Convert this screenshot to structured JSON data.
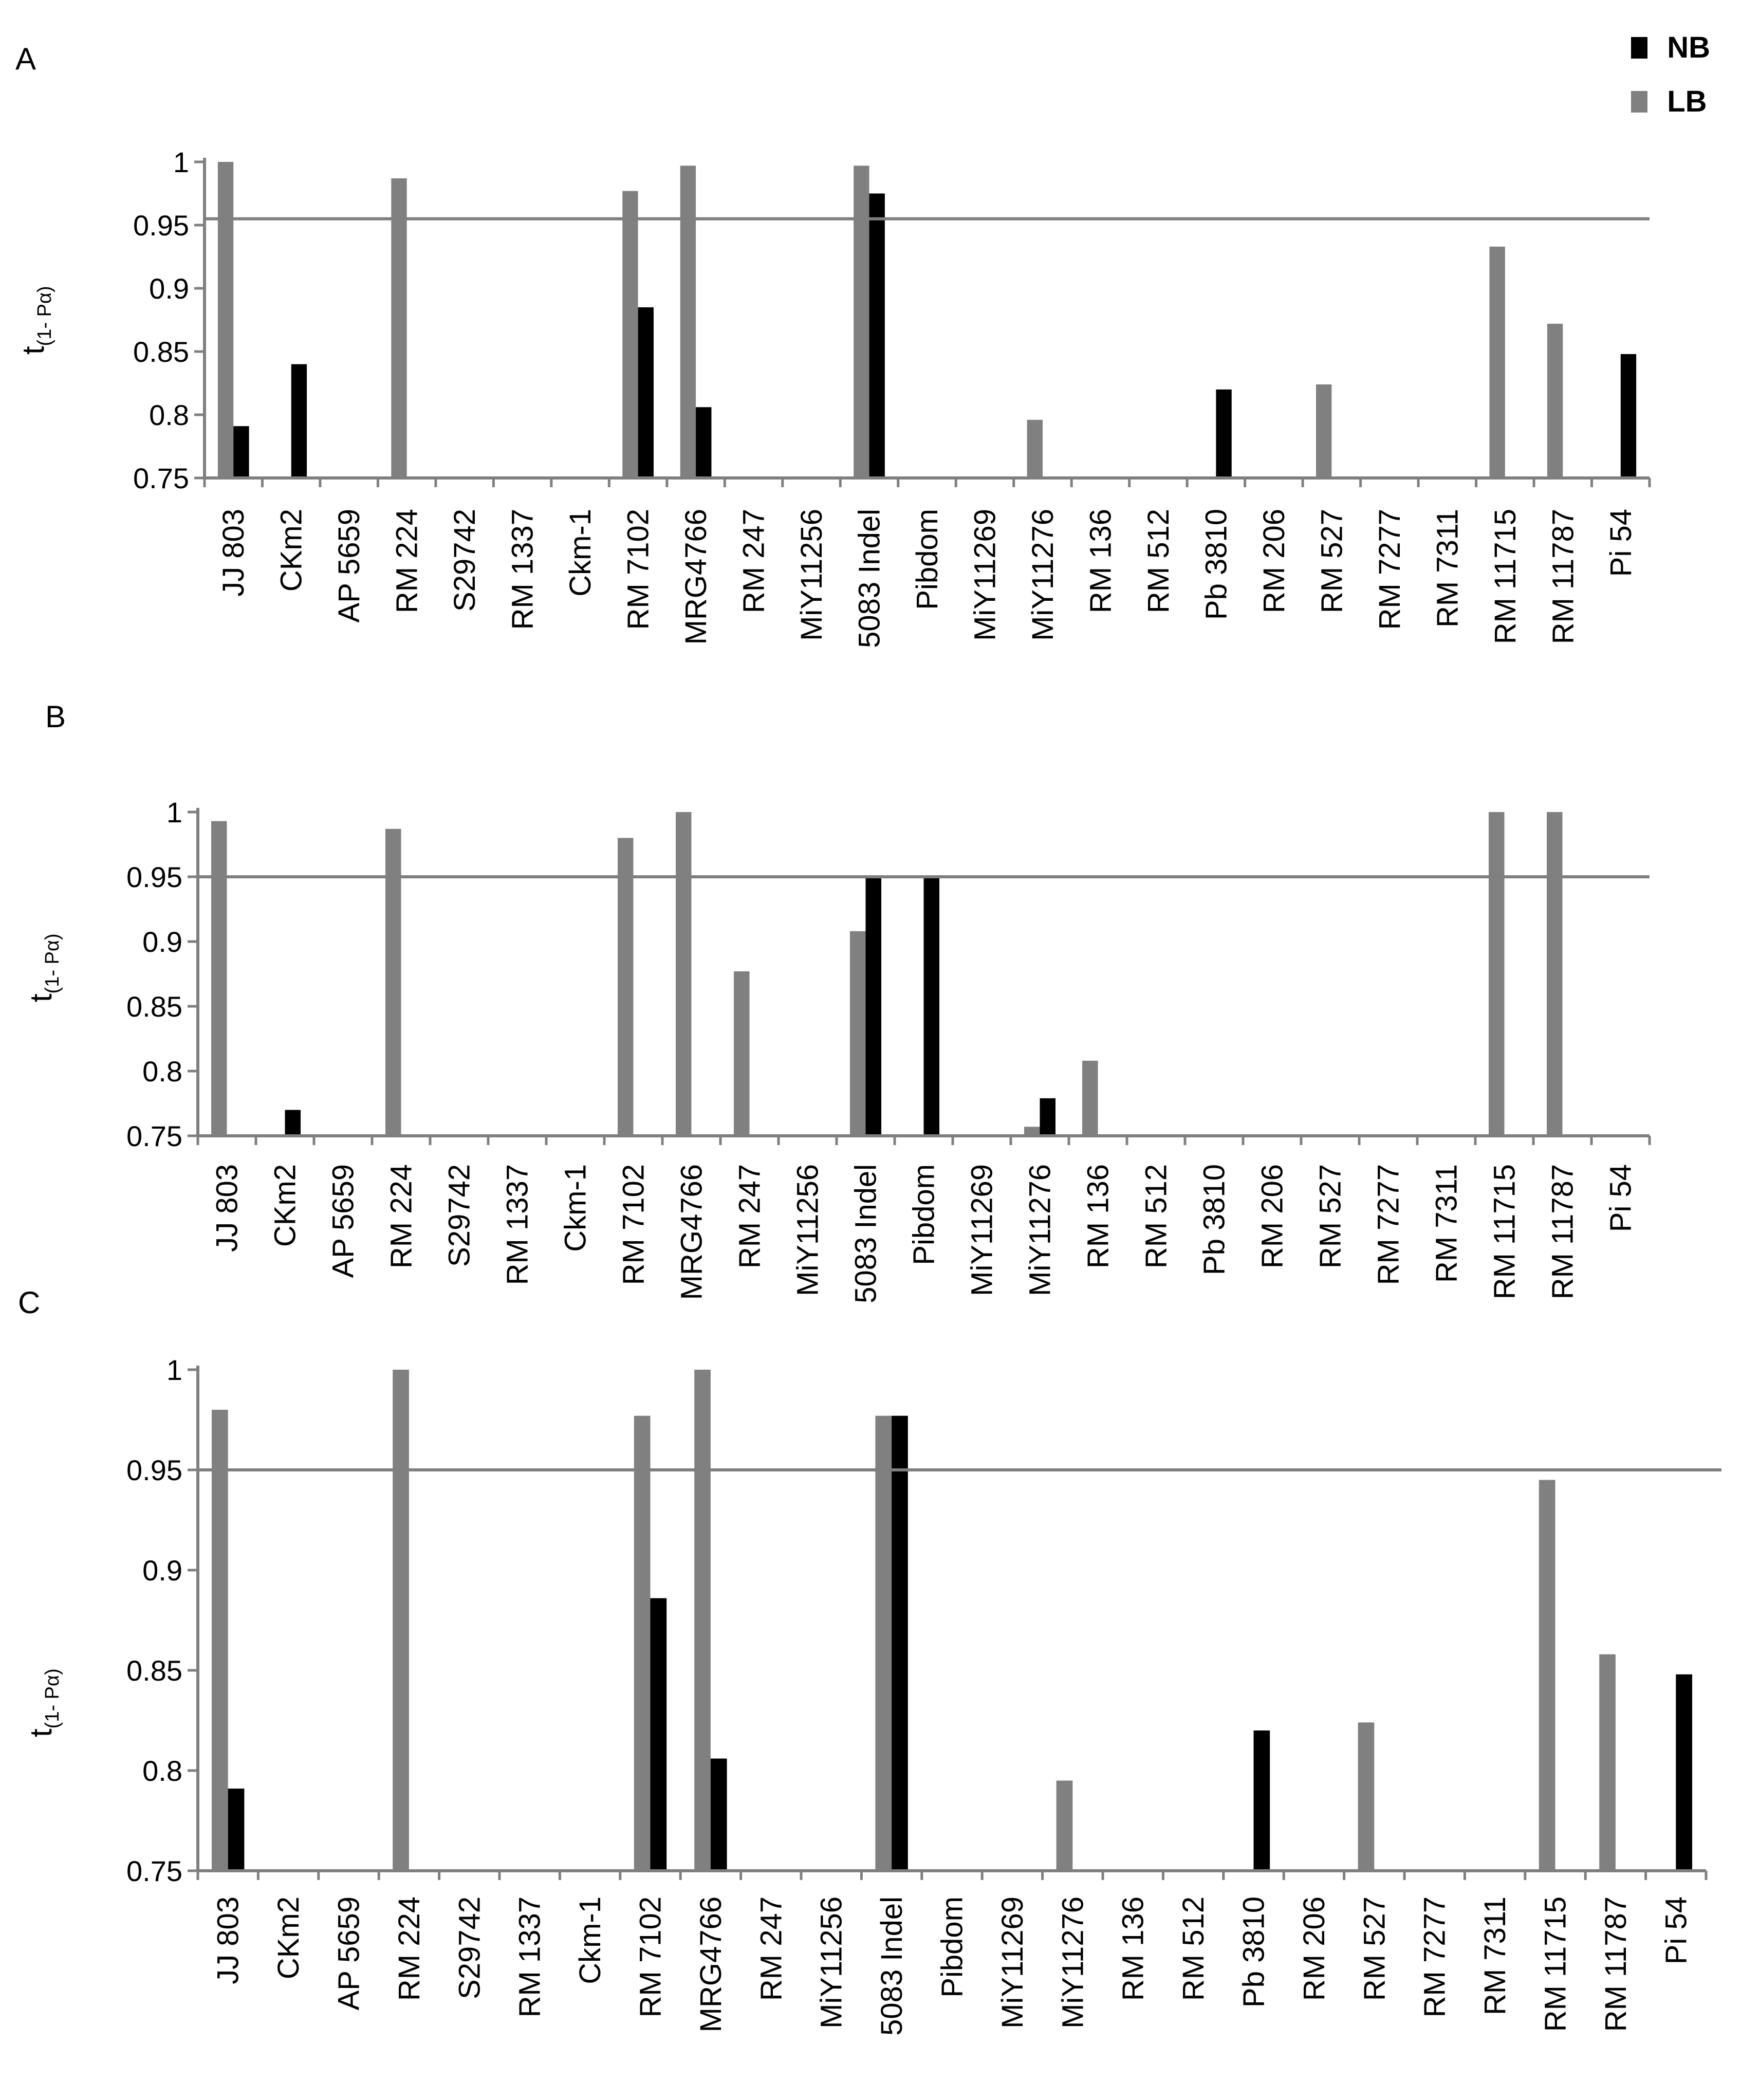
{
  "legend": {
    "items": [
      {
        "name": "NB",
        "color": "#000000"
      },
      {
        "name": "LB",
        "color": "#808080"
      }
    ]
  },
  "chart_data": [
    {
      "type": "bar",
      "panel_label": "A",
      "ylabel": "t",
      "ylabel_sub": "(1- Pα)",
      "ylim": [
        0.75,
        1.0
      ],
      "yticks": [
        "0.75",
        "0.8",
        "0.85",
        "0.9",
        "0.95",
        "1"
      ],
      "threshold": 0.955,
      "categories": [
        "JJ 803",
        "CKm2",
        "AP 5659",
        "RM 224",
        "S29742",
        "RM 1337",
        "Ckm-1",
        "RM 7102",
        "MRG4766",
        "RM 247",
        "MiY11256",
        "5083 Indel",
        "Pibdom",
        "MiY11269",
        "MiY11276",
        "RM 136",
        "RM 512",
        "Pb 3810",
        "RM 206",
        "RM 527",
        "RM 7277",
        "RM 7311",
        "RM 11715",
        "RM 11787",
        "Pi 54"
      ],
      "series": [
        {
          "name": "LB",
          "values": [
            1.0,
            null,
            null,
            0.987,
            null,
            null,
            null,
            0.977,
            0.997,
            null,
            null,
            0.997,
            null,
            null,
            0.796,
            null,
            null,
            null,
            null,
            0.824,
            null,
            null,
            0.933,
            0.872,
            null
          ]
        },
        {
          "name": "NB",
          "values": [
            0.791,
            0.84,
            null,
            null,
            null,
            null,
            null,
            0.885,
            0.806,
            null,
            null,
            0.975,
            null,
            null,
            null,
            null,
            null,
            0.82,
            null,
            null,
            null,
            null,
            null,
            null,
            0.848
          ]
        }
      ]
    },
    {
      "type": "bar",
      "panel_label": "B",
      "ylabel": "t",
      "ylabel_sub": "(1- Pα)",
      "ylim": [
        0.75,
        1.0
      ],
      "yticks": [
        "0.75",
        "0.8",
        "0.85",
        "0.9",
        "0.95",
        "1"
      ],
      "threshold": 0.95,
      "categories": [
        "JJ 803",
        "CKm2",
        "AP 5659",
        "RM 224",
        "S29742",
        "RM 1337",
        "Ckm-1",
        "RM 7102",
        "MRG4766",
        "RM 247",
        "MiY11256",
        "5083 Indel",
        "Pibdom",
        "MiY11269",
        "MiY11276",
        "RM 136",
        "RM 512",
        "Pb 3810",
        "RM 206",
        "RM 527",
        "RM 7277",
        "RM 7311",
        "RM 11715",
        "RM 11787",
        "Pi 54"
      ],
      "series": [
        {
          "name": "LB",
          "values": [
            0.993,
            null,
            null,
            0.987,
            null,
            null,
            null,
            0.98,
            1.0,
            0.877,
            null,
            0.908,
            null,
            null,
            0.757,
            0.808,
            null,
            null,
            null,
            null,
            null,
            null,
            1.0,
            1.0,
            null
          ]
        },
        {
          "name": "NB",
          "values": [
            null,
            0.77,
            null,
            null,
            null,
            null,
            null,
            null,
            null,
            null,
            null,
            0.95,
            0.95,
            null,
            0.779,
            null,
            null,
            null,
            null,
            null,
            null,
            null,
            null,
            null,
            null
          ]
        }
      ]
    },
    {
      "type": "bar",
      "panel_label": "C",
      "ylabel": "t",
      "ylabel_sub": "(1- Pα)",
      "ylim": [
        0.75,
        1.0
      ],
      "yticks": [
        "0.75",
        "0.8",
        "0.85",
        "0.9",
        "0.95",
        "1"
      ],
      "threshold": 0.95,
      "categories": [
        "JJ 803",
        "CKm2",
        "AP 5659",
        "RM 224",
        "S29742",
        "RM 1337",
        "Ckm-1",
        "RM 7102",
        "MRG4766",
        "RM 247",
        "MiY11256",
        "5083 Indel",
        "Pibdom",
        "MiY11269",
        "MiY11276",
        "RM 136",
        "RM 512",
        "Pb 3810",
        "RM 206",
        "RM 527",
        "RM 7277",
        "RM 7311",
        "RM 11715",
        "RM 11787",
        "Pi 54"
      ],
      "series": [
        {
          "name": "LB",
          "values": [
            0.98,
            null,
            null,
            1.0,
            null,
            null,
            null,
            0.977,
            1.0,
            null,
            null,
            0.977,
            null,
            null,
            0.795,
            null,
            null,
            null,
            null,
            0.824,
            null,
            null,
            0.945,
            0.858,
            null
          ]
        },
        {
          "name": "NB",
          "values": [
            0.791,
            null,
            null,
            null,
            null,
            null,
            null,
            0.886,
            0.806,
            null,
            null,
            0.977,
            null,
            null,
            null,
            null,
            null,
            0.82,
            null,
            null,
            null,
            null,
            null,
            null,
            0.848
          ]
        }
      ]
    }
  ]
}
